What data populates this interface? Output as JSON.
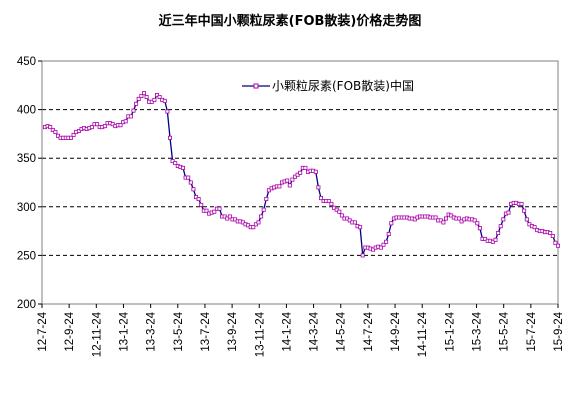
{
  "chart_data": {
    "type": "line",
    "title": "近三年中国小颗粒尿素(FOB散装)价格走势图",
    "xlabel": "",
    "ylabel": "",
    "ylim": [
      200,
      450
    ],
    "yticks": [
      200,
      250,
      300,
      350,
      400,
      450
    ],
    "grid": "horizontal-dashed",
    "legend_position": "top-center",
    "x_tick_labels": [
      "12-7-24",
      "12-9-24",
      "12-11-24",
      "13-1-24",
      "13-3-24",
      "13-5-24",
      "13-7-24",
      "13-9-24",
      "13-11-24",
      "14-1-24",
      "14-3-24",
      "14-5-24",
      "14-7-24",
      "14-9-24",
      "14-11-24",
      "15-1-24",
      "15-3-24",
      "15-5-24",
      "15-7-24",
      "15-9-24"
    ],
    "series": [
      {
        "name": "小颗粒尿素(FOB散装)中国",
        "color": "#000080",
        "marker_color": "#aa00aa",
        "values": [
          382,
          383,
          382,
          379,
          377,
          373,
          371,
          371,
          371,
          371,
          371,
          374,
          377,
          378,
          380,
          381,
          380,
          381,
          382,
          385,
          385,
          382,
          382,
          383,
          386,
          386,
          385,
          383,
          384,
          384,
          387,
          388,
          393,
          393,
          399,
          406,
          411,
          414,
          417,
          413,
          408,
          408,
          410,
          415,
          413,
          410,
          409,
          398,
          371,
          347,
          345,
          342,
          341,
          340,
          330,
          330,
          325,
          318,
          310,
          308,
          302,
          296,
          296,
          293,
          294,
          295,
          298,
          298,
          290,
          290,
          288,
          290,
          287,
          287,
          285,
          285,
          284,
          282,
          281,
          279,
          279,
          282,
          284,
          290,
          297,
          308,
          317,
          319,
          320,
          321,
          321,
          325,
          326,
          327,
          322,
          328,
          331,
          333,
          335,
          340,
          340,
          336,
          337,
          337,
          336,
          320,
          309,
          306,
          306,
          306,
          303,
          299,
          297,
          295,
          291,
          288,
          288,
          286,
          284,
          284,
          280,
          279,
          250,
          258,
          258,
          257,
          256,
          258,
          259,
          258,
          261,
          264,
          272,
          283,
          288,
          289,
          289,
          289,
          289,
          289,
          288,
          288,
          287,
          289,
          290,
          290,
          290,
          290,
          289,
          289,
          289,
          286,
          286,
          284,
          288,
          292,
          291,
          289,
          288,
          288,
          285,
          287,
          288,
          287,
          287,
          286,
          283,
          278,
          267,
          267,
          265,
          265,
          264,
          266,
          273,
          280,
          287,
          293,
          294,
          303,
          304,
          304,
          303,
          303,
          296,
          287,
          282,
          280,
          279,
          276,
          275,
          275,
          274,
          274,
          273,
          270,
          263,
          260
        ]
      }
    ]
  }
}
